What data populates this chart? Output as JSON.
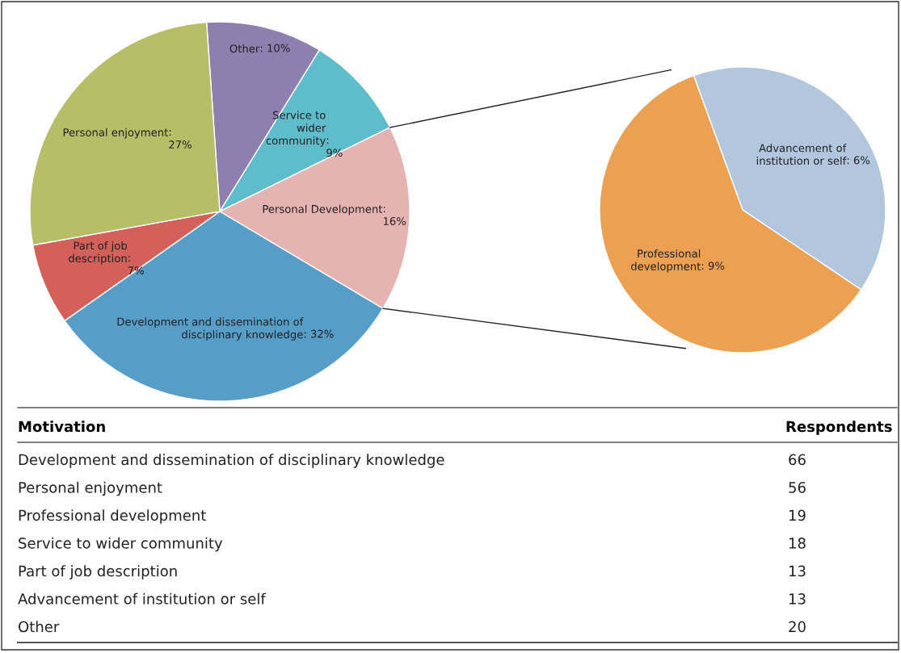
{
  "chart_data": [
    {
      "type": "pie",
      "categories": [
        "Other",
        "Service to wider community",
        "Personal Development",
        "Development and dissemination of disciplinary knowledge",
        "Part of job description",
        "Personal enjoyment"
      ],
      "values": [
        10,
        9,
        16,
        32,
        7,
        27
      ],
      "value_labels": [
        ": 10%",
        ": 9%",
        ": 16%",
        ": 32%",
        ": 7%",
        ": 27%"
      ],
      "colors": [
        "#8e7fae",
        "#5fbccb",
        "#e5b3b1",
        "#569ec8",
        "#d3605a",
        "#b8bd67"
      ]
    },
    {
      "type": "pie",
      "categories": [
        "Advancement of institution or self",
        "Professional development"
      ],
      "values": [
        6,
        9
      ],
      "value_labels": [
        ": 6%",
        ": 9%"
      ],
      "colors": [
        "#b2c6de",
        "#eca052"
      ]
    },
    {
      "type": "other",
      "xlabel": "Motivation",
      "ylabel": "Respondents",
      "categories": [
        "Development and dissemination of disciplinary knowledge",
        "Personal enjoyment",
        "Professional development",
        "Service to wider community",
        "Part of job description",
        "Advancement of institution or self",
        "Other"
      ],
      "values": [
        66,
        56,
        19,
        18,
        13,
        13,
        20
      ],
      "data_labels": true
    }
  ]
}
